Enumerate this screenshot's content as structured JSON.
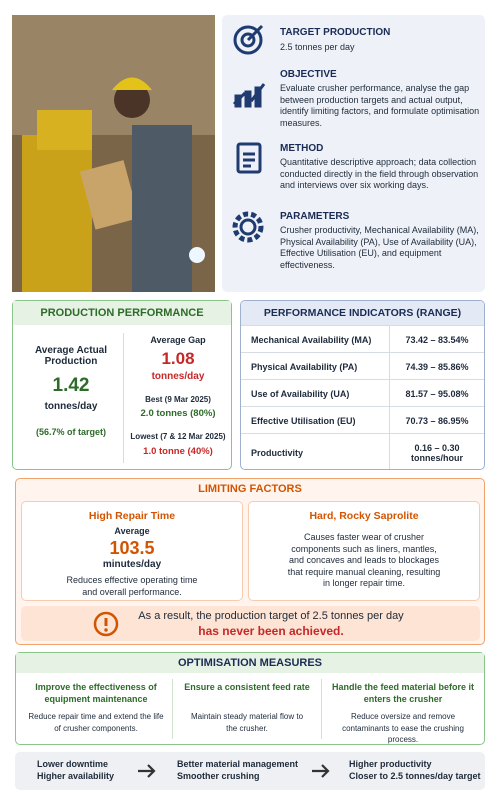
{
  "overview": [
    {
      "title": "TARGET PRODUCTION",
      "text": "2.5 tonnes per day"
    },
    {
      "title": "OBJECTIVE",
      "text": "Evaluate crusher performance, analyse the gap between production targets and actual output, identify limiting factors, and formulate optimisation measures."
    },
    {
      "title": "METHOD",
      "text": "Quantitative descriptive approach; data collection conducted directly in the field through observation and interviews over six working days."
    },
    {
      "title": "PARAMETERS",
      "text": "Crusher productivity, Mechanical Availability (MA), Physical Availability (PA), Use of Availability (UA), Effective Utilisation (EU), and equipment effectiveness."
    }
  ],
  "production_performance": {
    "title": "PRODUCTION PERFORMANCE",
    "average_actual": {
      "label": "Average Actual Production",
      "value": "1.42",
      "unit": "tonnes/day",
      "note": "(56.7% of target)"
    },
    "average_gap": {
      "label": "Average Gap",
      "value": "1.08",
      "unit": "tonnes/day"
    },
    "best": {
      "label": "Best (9 Mar 2025)",
      "value": "2.0 tonnes (80%)"
    },
    "lowest": {
      "label": "Lowest (7 & 12 Mar 2025)",
      "value": "1.0 tonne (40%)"
    }
  },
  "performance_indicators": {
    "title": "PERFORMANCE INDICATORS (RANGE)",
    "rows": [
      [
        "Mechanical Availability (MA)",
        "73.42 – 83.54%"
      ],
      [
        "Physical Availability (PA)",
        "74.39 – 85.86%"
      ],
      [
        "Use of Availability (UA)",
        "81.57 – 95.08%"
      ],
      [
        "Effective Utilisation (EU)",
        "70.73 – 86.95%"
      ],
      [
        "Productivity",
        "0.16 – 0.30 tonnes/hour"
      ]
    ]
  },
  "limiting_factors": {
    "title": "LIMITING FACTORS",
    "factors": [
      {
        "title": "High Repair Time",
        "label": "Average",
        "value": "103.5",
        "unit": "minutes/day",
        "text": "Reduces effective operating time and overall performance."
      },
      {
        "title": "Hard, Rocky Saprolite",
        "text": "Causes faster wear of crusher components such as liners, mantles, and concaves and leads to blockages that require manual cleaning, resulting in longer repair time."
      }
    ],
    "conclusion": {
      "text": "As a result, the production target of 2.5 tonnes per day",
      "emphasis": "has never been achieved."
    }
  },
  "optimisation": {
    "title": "OPTIMISATION MEASURES",
    "measures": [
      {
        "title": "Improve the effectiveness of equipment maintenance",
        "text": "Reduce repair time and extend the life of crusher components."
      },
      {
        "title": "Ensure a consistent feed rate",
        "text": "Maintain steady material flow to the crusher."
      },
      {
        "title": "Handle the feed material before it enters the crusher",
        "text": "Reduce oversize and remove contaminants to ease the crushing process."
      }
    ]
  },
  "outcomes": [
    [
      "Lower downtime",
      "Higher availability"
    ],
    [
      "Better material management",
      "Smoother crushing"
    ],
    [
      "Higher productivity",
      "Closer to 2.5 tonnes/day target"
    ]
  ]
}
